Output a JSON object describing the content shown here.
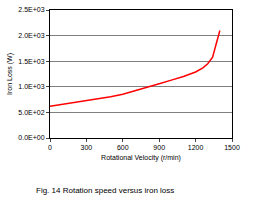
{
  "chart_data": {
    "type": "line",
    "caption": "Fig. 14 Rotation speed versus iron loss",
    "x_label": "Rotational Velocity (r/min)",
    "y_label": "Iron Loss (W)",
    "x": [
      0,
      100,
      200,
      300,
      400,
      500,
      600,
      700,
      800,
      900,
      1000,
      1100,
      1200,
      1260,
      1300,
      1340,
      1400
    ],
    "values": [
      620,
      655,
      690,
      725,
      765,
      805,
      855,
      920,
      990,
      1060,
      1130,
      1200,
      1290,
      1370,
      1450,
      1580,
      2100
    ],
    "color": "#ff0000",
    "xlim": [
      0,
      1500
    ],
    "xticks": [
      0,
      300,
      600,
      900,
      1200,
      1500
    ],
    "ylim": [
      0,
      2500
    ],
    "yticks": [
      {
        "value": 0,
        "label": "0.0E+00"
      },
      {
        "value": 500,
        "label": "5.0E+02"
      },
      {
        "value": 1000,
        "label": "1.0E+03"
      },
      {
        "value": 1500,
        "label": "1.5E+03"
      },
      {
        "value": 2000,
        "label": "2.0E+03"
      },
      {
        "value": 2500,
        "label": "2.5E+03"
      }
    ],
    "grid": true
  }
}
